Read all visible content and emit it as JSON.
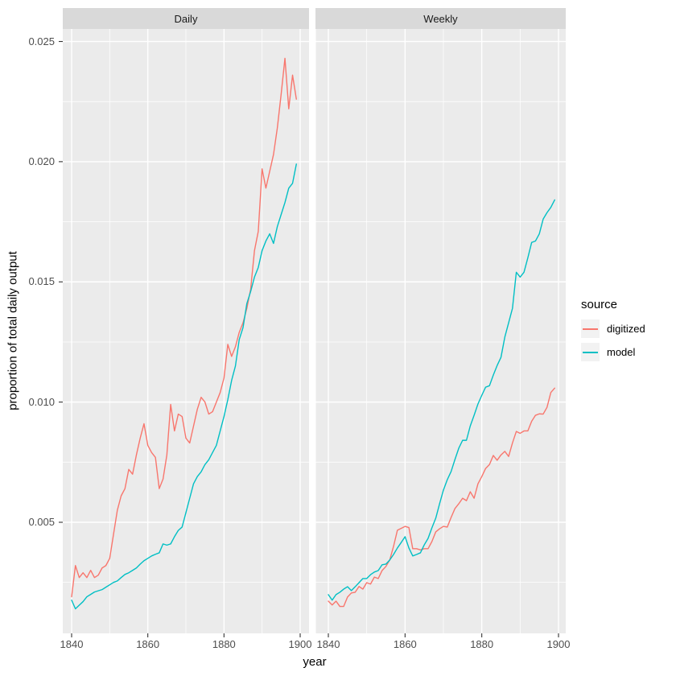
{
  "style": {
    "figure_bg": "#FFFFFF",
    "panel_bg": "#EBEBEB",
    "strip_bg": "#D9D9D9",
    "grid_color": "#FFFFFF",
    "tick_color": "#333333",
    "axis_text_color": "#4D4D4D",
    "text_color": "#000000",
    "legend_key_bg": "#F2F2F2"
  },
  "chart_data": {
    "type": "line",
    "title": "",
    "xlabel": "year",
    "ylabel": "proportion of total daily output",
    "grid": true,
    "legend": {
      "title": "source",
      "position": "right",
      "entries": [
        {
          "label": "digitized",
          "color": "#F8766D"
        },
        {
          "label": "model",
          "color": "#00BFC4"
        }
      ]
    },
    "x_ticks": [
      1840,
      1860,
      1880,
      1900
    ],
    "x_tick_labels": [
      "1840",
      "1860",
      "1880",
      "1900"
    ],
    "x_minor": [
      1850,
      1870,
      1890
    ],
    "y_ticks": [
      0.005,
      0.01,
      0.015,
      0.02,
      0.025
    ],
    "y_tick_labels": [
      "0.005",
      "0.010",
      "0.015",
      "0.020",
      "0.025"
    ],
    "y_minor": [
      0.0025,
      0.0075,
      0.0125,
      0.0175,
      0.0225
    ],
    "xlim": [
      1837,
      1902
    ],
    "ylim": [
      0.00038,
      0.02552
    ],
    "years": [
      1840,
      1841,
      1842,
      1843,
      1844,
      1845,
      1846,
      1847,
      1848,
      1849,
      1850,
      1851,
      1852,
      1853,
      1854,
      1855,
      1856,
      1857,
      1858,
      1859,
      1860,
      1861,
      1862,
      1863,
      1864,
      1865,
      1866,
      1867,
      1868,
      1869,
      1870,
      1871,
      1872,
      1873,
      1874,
      1875,
      1876,
      1877,
      1878,
      1879,
      1880,
      1881,
      1882,
      1883,
      1884,
      1885,
      1886,
      1887,
      1888,
      1889,
      1890,
      1891,
      1892,
      1893,
      1894,
      1895,
      1896,
      1897,
      1898,
      1899
    ],
    "facets": [
      {
        "label": "Daily",
        "series": [
          {
            "name": "digitized",
            "color": "#F8766D",
            "values": [
              0.0019,
              0.0032,
              0.0027,
              0.0029,
              0.0027,
              0.003,
              0.0027,
              0.0028,
              0.0031,
              0.0032,
              0.0035,
              0.0045,
              0.0055,
              0.0061,
              0.0064,
              0.0072,
              0.007,
              0.0078,
              0.0085,
              0.0091,
              0.0082,
              0.0079,
              0.0077,
              0.0064,
              0.0068,
              0.0078,
              0.0099,
              0.0088,
              0.0095,
              0.0094,
              0.0085,
              0.0083,
              0.009,
              0.0097,
              0.0102,
              0.01,
              0.0095,
              0.0096,
              0.01,
              0.0104,
              0.011,
              0.0124,
              0.0119,
              0.0123,
              0.0129,
              0.0133,
              0.0139,
              0.0147,
              0.0163,
              0.0171,
              0.0197,
              0.0189,
              0.0196,
              0.0203,
              0.0214,
              0.0228,
              0.0243,
              0.0222,
              0.0236,
              0.0226
            ]
          },
          {
            "name": "model",
            "color": "#00BFC4",
            "values": [
              0.00176,
              0.0014,
              0.00155,
              0.0017,
              0.0019,
              0.002,
              0.0021,
              0.00215,
              0.0022,
              0.0023,
              0.0024,
              0.0025,
              0.00256,
              0.0027,
              0.00283,
              0.0029,
              0.003,
              0.0031,
              0.00326,
              0.0034,
              0.0035,
              0.0036,
              0.00367,
              0.00373,
              0.0041,
              0.00405,
              0.0041,
              0.0044,
              0.00466,
              0.0048,
              0.0054,
              0.006,
              0.0066,
              0.0069,
              0.0071,
              0.0074,
              0.0076,
              0.0079,
              0.0082,
              0.0088,
              0.0094,
              0.0101,
              0.0109,
              0.0115,
              0.0126,
              0.0131,
              0.0141,
              0.0146,
              0.0152,
              0.0156,
              0.0163,
              0.0167,
              0.017,
              0.0166,
              0.0173,
              0.0178,
              0.0183,
              0.0189,
              0.0191,
              0.0199
            ]
          }
        ]
      },
      {
        "label": "Weekly",
        "series": [
          {
            "name": "digitized",
            "color": "#F8766D",
            "values": [
              0.00172,
              0.00156,
              0.00172,
              0.0015,
              0.0015,
              0.00189,
              0.00206,
              0.00209,
              0.00233,
              0.00222,
              0.00249,
              0.00243,
              0.00272,
              0.00266,
              0.00299,
              0.00316,
              0.00343,
              0.004,
              0.00467,
              0.00475,
              0.00483,
              0.00478,
              0.0039,
              0.0039,
              0.00385,
              0.0039,
              0.0039,
              0.0042,
              0.0046,
              0.00473,
              0.00483,
              0.0048,
              0.0052,
              0.00557,
              0.00577,
              0.006,
              0.0059,
              0.00627,
              0.006,
              0.0066,
              0.0069,
              0.00724,
              0.0074,
              0.00778,
              0.00758,
              0.0078,
              0.00795,
              0.00774,
              0.0083,
              0.00878,
              0.0087,
              0.0088,
              0.0088,
              0.0092,
              0.00945,
              0.00951,
              0.0095,
              0.00978,
              0.0104,
              0.01058
            ]
          },
          {
            "name": "model",
            "color": "#00BFC4",
            "values": [
              0.00199,
              0.00176,
              0.00199,
              0.00209,
              0.00222,
              0.00232,
              0.00216,
              0.00232,
              0.00249,
              0.00266,
              0.00266,
              0.00282,
              0.00293,
              0.00299,
              0.00323,
              0.00326,
              0.00343,
              0.00366,
              0.00393,
              0.00416,
              0.0044,
              0.00393,
              0.0036,
              0.00366,
              0.00373,
              0.00406,
              0.00433,
              0.00477,
              0.00517,
              0.00577,
              0.00634,
              0.00677,
              0.00711,
              0.00761,
              0.00808,
              0.00841,
              0.00841,
              0.00901,
              0.00945,
              0.00992,
              0.01028,
              0.01062,
              0.01068,
              0.01112,
              0.01152,
              0.01186,
              0.0127,
              0.0133,
              0.0139,
              0.0154,
              0.0152,
              0.0154,
              0.016,
              0.01664,
              0.0167,
              0.017,
              0.01761,
              0.01788,
              0.0181,
              0.01841
            ]
          }
        ]
      }
    ]
  }
}
